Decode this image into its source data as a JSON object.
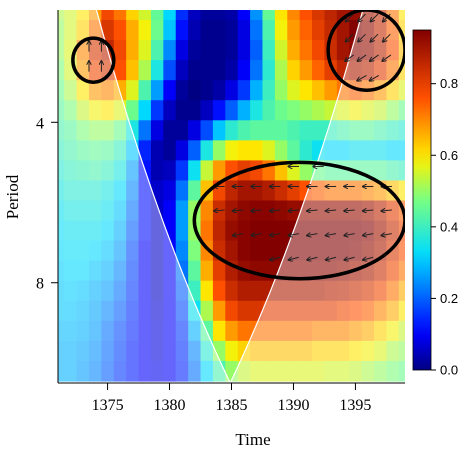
{
  "chart_data": {
    "type": "heatmap",
    "title": "",
    "xlabel": "Time",
    "ylabel": "Period",
    "x_range": [
      1371,
      1399
    ],
    "y_range": [
      1.2,
      10.5
    ],
    "x_ticks": [
      1375,
      1380,
      1385,
      1390,
      1395
    ],
    "y_ticks": [
      4,
      8
    ],
    "colorbar": {
      "range": [
        0,
        0.95
      ],
      "ticks": [
        0.0,
        0.2,
        0.4,
        0.6,
        0.8
      ],
      "tick_labels": [
        "0.0",
        "0.2",
        "0.4",
        "0.6",
        "0.8"
      ]
    },
    "power_grid": {
      "x_start": 1371,
      "x_end": 1399,
      "x_step": 1,
      "y_start": 1.2,
      "y_end": 10.5,
      "y_step": 0.5,
      "shape": "row-major, rows = period from short to long, columns = time",
      "values": [
        [
          0.52,
          0.55,
          0.6,
          0.68,
          0.78,
          0.72,
          0.62,
          0.55,
          0.45,
          0.32,
          0.15,
          0.05,
          0.02,
          0.02,
          0.03,
          0.1,
          0.25,
          0.45,
          0.6,
          0.7,
          0.76,
          0.82,
          0.86,
          0.9,
          0.92,
          0.9,
          0.84,
          0.72,
          0.6
        ],
        [
          0.5,
          0.55,
          0.62,
          0.72,
          0.82,
          0.76,
          0.66,
          0.58,
          0.46,
          0.3,
          0.12,
          0.04,
          0.01,
          0.01,
          0.02,
          0.08,
          0.22,
          0.42,
          0.58,
          0.68,
          0.74,
          0.8,
          0.85,
          0.9,
          0.95,
          0.92,
          0.85,
          0.74,
          0.62
        ],
        [
          0.5,
          0.56,
          0.7,
          0.82,
          0.86,
          0.78,
          0.66,
          0.56,
          0.42,
          0.24,
          0.08,
          0.02,
          0.01,
          0.01,
          0.02,
          0.08,
          0.2,
          0.4,
          0.55,
          0.66,
          0.72,
          0.78,
          0.84,
          0.9,
          0.93,
          0.92,
          0.86,
          0.76,
          0.64
        ],
        [
          0.48,
          0.55,
          0.68,
          0.78,
          0.82,
          0.76,
          0.64,
          0.52,
          0.36,
          0.18,
          0.05,
          0.01,
          0.01,
          0.01,
          0.03,
          0.1,
          0.22,
          0.38,
          0.52,
          0.62,
          0.68,
          0.74,
          0.8,
          0.86,
          0.88,
          0.86,
          0.8,
          0.72,
          0.62
        ],
        [
          0.46,
          0.52,
          0.6,
          0.68,
          0.7,
          0.66,
          0.56,
          0.42,
          0.26,
          0.1,
          0.02,
          0.0,
          0.01,
          0.03,
          0.08,
          0.16,
          0.28,
          0.4,
          0.5,
          0.56,
          0.6,
          0.64,
          0.68,
          0.72,
          0.74,
          0.72,
          0.68,
          0.62,
          0.56
        ],
        [
          0.44,
          0.48,
          0.54,
          0.58,
          0.6,
          0.56,
          0.46,
          0.32,
          0.16,
          0.05,
          0.01,
          0.01,
          0.05,
          0.12,
          0.2,
          0.28,
          0.36,
          0.42,
          0.46,
          0.48,
          0.5,
          0.52,
          0.54,
          0.56,
          0.58,
          0.56,
          0.54,
          0.5,
          0.46
        ],
        [
          0.42,
          0.44,
          0.48,
          0.5,
          0.5,
          0.46,
          0.36,
          0.22,
          0.08,
          0.02,
          0.02,
          0.08,
          0.18,
          0.3,
          0.38,
          0.42,
          0.44,
          0.44,
          0.44,
          0.42,
          0.4,
          0.4,
          0.4,
          0.42,
          0.44,
          0.44,
          0.42,
          0.4,
          0.38
        ],
        [
          0.4,
          0.42,
          0.44,
          0.45,
          0.44,
          0.4,
          0.3,
          0.14,
          0.04,
          0.02,
          0.08,
          0.2,
          0.36,
          0.5,
          0.58,
          0.6,
          0.6,
          0.56,
          0.5,
          0.44,
          0.38,
          0.34,
          0.32,
          0.32,
          0.34,
          0.34,
          0.34,
          0.32,
          0.32
        ],
        [
          0.38,
          0.4,
          0.41,
          0.42,
          0.4,
          0.36,
          0.26,
          0.12,
          0.04,
          0.05,
          0.16,
          0.34,
          0.54,
          0.68,
          0.76,
          0.8,
          0.78,
          0.72,
          0.64,
          0.56,
          0.5,
          0.46,
          0.44,
          0.44,
          0.44,
          0.44,
          0.44,
          0.42,
          0.4
        ],
        [
          0.36,
          0.38,
          0.38,
          0.38,
          0.36,
          0.32,
          0.24,
          0.12,
          0.06,
          0.08,
          0.22,
          0.44,
          0.64,
          0.78,
          0.86,
          0.9,
          0.9,
          0.88,
          0.84,
          0.8,
          0.76,
          0.74,
          0.72,
          0.72,
          0.72,
          0.7,
          0.68,
          0.64,
          0.6
        ],
        [
          0.34,
          0.36,
          0.36,
          0.36,
          0.34,
          0.3,
          0.22,
          0.12,
          0.06,
          0.1,
          0.26,
          0.5,
          0.7,
          0.84,
          0.9,
          0.93,
          0.94,
          0.94,
          0.93,
          0.92,
          0.92,
          0.92,
          0.92,
          0.92,
          0.92,
          0.9,
          0.86,
          0.8,
          0.74
        ],
        [
          0.33,
          0.34,
          0.34,
          0.34,
          0.32,
          0.28,
          0.2,
          0.12,
          0.06,
          0.1,
          0.26,
          0.5,
          0.72,
          0.86,
          0.92,
          0.94,
          0.95,
          0.95,
          0.95,
          0.95,
          0.95,
          0.95,
          0.95,
          0.95,
          0.95,
          0.94,
          0.9,
          0.84,
          0.78
        ],
        [
          0.32,
          0.33,
          0.33,
          0.32,
          0.3,
          0.26,
          0.18,
          0.1,
          0.06,
          0.1,
          0.24,
          0.48,
          0.7,
          0.84,
          0.9,
          0.94,
          0.95,
          0.95,
          0.95,
          0.95,
          0.95,
          0.95,
          0.95,
          0.95,
          0.94,
          0.92,
          0.88,
          0.82,
          0.76
        ],
        [
          0.31,
          0.32,
          0.32,
          0.3,
          0.28,
          0.24,
          0.17,
          0.1,
          0.06,
          0.1,
          0.22,
          0.44,
          0.66,
          0.8,
          0.88,
          0.92,
          0.93,
          0.93,
          0.93,
          0.93,
          0.93,
          0.93,
          0.93,
          0.92,
          0.9,
          0.88,
          0.84,
          0.78,
          0.72
        ],
        [
          0.3,
          0.31,
          0.3,
          0.28,
          0.26,
          0.22,
          0.16,
          0.1,
          0.06,
          0.1,
          0.2,
          0.4,
          0.6,
          0.76,
          0.84,
          0.88,
          0.88,
          0.88,
          0.88,
          0.88,
          0.88,
          0.88,
          0.87,
          0.86,
          0.84,
          0.82,
          0.78,
          0.72,
          0.66
        ],
        [
          0.3,
          0.3,
          0.29,
          0.27,
          0.24,
          0.2,
          0.15,
          0.1,
          0.07,
          0.1,
          0.18,
          0.34,
          0.52,
          0.68,
          0.78,
          0.82,
          0.82,
          0.8,
          0.8,
          0.8,
          0.8,
          0.8,
          0.8,
          0.78,
          0.76,
          0.74,
          0.7,
          0.66,
          0.6
        ],
        [
          0.29,
          0.29,
          0.28,
          0.26,
          0.22,
          0.18,
          0.14,
          0.1,
          0.08,
          0.1,
          0.16,
          0.28,
          0.44,
          0.6,
          0.68,
          0.72,
          0.72,
          0.72,
          0.72,
          0.72,
          0.72,
          0.7,
          0.7,
          0.7,
          0.68,
          0.66,
          0.62,
          0.58,
          0.54
        ],
        [
          0.28,
          0.28,
          0.27,
          0.25,
          0.21,
          0.17,
          0.13,
          0.1,
          0.08,
          0.1,
          0.15,
          0.24,
          0.38,
          0.5,
          0.58,
          0.62,
          0.64,
          0.64,
          0.64,
          0.64,
          0.64,
          0.62,
          0.62,
          0.62,
          0.6,
          0.58,
          0.56,
          0.52,
          0.5
        ],
        [
          0.28,
          0.28,
          0.26,
          0.24,
          0.2,
          0.16,
          0.13,
          0.1,
          0.09,
          0.1,
          0.14,
          0.22,
          0.32,
          0.42,
          0.5,
          0.54,
          0.56,
          0.56,
          0.56,
          0.56,
          0.56,
          0.56,
          0.55,
          0.55,
          0.54,
          0.52,
          0.5,
          0.48,
          0.46
        ]
      ]
    },
    "significance_regions": [
      {
        "name": "region-a",
        "time": [
          1372.2,
          1375.5
        ],
        "period": [
          1.9,
          3.0
        ]
      },
      {
        "name": "region-b",
        "time": [
          1392.8,
          1399
        ],
        "period": [
          1.2,
          3.2
        ]
      },
      {
        "name": "region-c",
        "time": [
          1382,
          1399
        ],
        "period": [
          5.0,
          7.9
        ]
      }
    ],
    "cone_of_influence": {
      "apex_time": 1384.9,
      "apex_period": 10.5,
      "left_edge_top_time": 1374.1,
      "right_edge_top_time": 1395.6
    },
    "phase_arrows": [
      {
        "t": 1373.5,
        "p": 2.1,
        "angle": 90
      },
      {
        "t": 1374.5,
        "p": 2.1,
        "angle": 90
      },
      {
        "t": 1373.5,
        "p": 2.6,
        "angle": 90
      },
      {
        "t": 1374.5,
        "p": 2.6,
        "angle": 90
      },
      {
        "t": 1394.5,
        "p": 1.4,
        "angle": 225
      },
      {
        "t": 1395.5,
        "p": 1.4,
        "angle": 225
      },
      {
        "t": 1396.5,
        "p": 1.4,
        "angle": 225
      },
      {
        "t": 1397.5,
        "p": 1.4,
        "angle": 225
      },
      {
        "t": 1394.5,
        "p": 1.9,
        "angle": 225
      },
      {
        "t": 1395.5,
        "p": 1.9,
        "angle": 225
      },
      {
        "t": 1396.5,
        "p": 1.9,
        "angle": 225
      },
      {
        "t": 1397.5,
        "p": 1.9,
        "angle": 225
      },
      {
        "t": 1394.5,
        "p": 2.4,
        "angle": 215
      },
      {
        "t": 1395.5,
        "p": 2.4,
        "angle": 215
      },
      {
        "t": 1396.5,
        "p": 2.4,
        "angle": 215
      },
      {
        "t": 1397.5,
        "p": 2.4,
        "angle": 215
      },
      {
        "t": 1395.5,
        "p": 2.9,
        "angle": 210
      },
      {
        "t": 1396.5,
        "p": 2.9,
        "angle": 210
      },
      {
        "t": 1384,
        "p": 5.6,
        "angle": 180
      },
      {
        "t": 1385.5,
        "p": 5.6,
        "angle": 180
      },
      {
        "t": 1387,
        "p": 5.6,
        "angle": 180
      },
      {
        "t": 1388.5,
        "p": 5.6,
        "angle": 180
      },
      {
        "t": 1390,
        "p": 5.6,
        "angle": 180
      },
      {
        "t": 1391.5,
        "p": 5.6,
        "angle": 180
      },
      {
        "t": 1393,
        "p": 5.6,
        "angle": 180
      },
      {
        "t": 1394.5,
        "p": 5.6,
        "angle": 180
      },
      {
        "t": 1396,
        "p": 5.6,
        "angle": 180
      },
      {
        "t": 1397.5,
        "p": 5.6,
        "angle": 180
      },
      {
        "t": 1384,
        "p": 6.2,
        "angle": 185
      },
      {
        "t": 1385.5,
        "p": 6.2,
        "angle": 185
      },
      {
        "t": 1387,
        "p": 6.2,
        "angle": 185
      },
      {
        "t": 1388.5,
        "p": 6.2,
        "angle": 185
      },
      {
        "t": 1390,
        "p": 6.2,
        "angle": 185
      },
      {
        "t": 1391.5,
        "p": 6.2,
        "angle": 185
      },
      {
        "t": 1393,
        "p": 6.2,
        "angle": 185
      },
      {
        "t": 1394.5,
        "p": 6.2,
        "angle": 185
      },
      {
        "t": 1396,
        "p": 6.2,
        "angle": 185
      },
      {
        "t": 1397.5,
        "p": 6.2,
        "angle": 185
      },
      {
        "t": 1385.5,
        "p": 6.8,
        "angle": 190
      },
      {
        "t": 1387,
        "p": 6.8,
        "angle": 190
      },
      {
        "t": 1388.5,
        "p": 6.8,
        "angle": 190
      },
      {
        "t": 1390,
        "p": 6.8,
        "angle": 190
      },
      {
        "t": 1391.5,
        "p": 6.8,
        "angle": 190
      },
      {
        "t": 1393,
        "p": 6.8,
        "angle": 190
      },
      {
        "t": 1394.5,
        "p": 6.8,
        "angle": 190
      },
      {
        "t": 1396,
        "p": 6.8,
        "angle": 190
      },
      {
        "t": 1397.5,
        "p": 6.8,
        "angle": 190
      },
      {
        "t": 1388.5,
        "p": 7.4,
        "angle": 195
      },
      {
        "t": 1390,
        "p": 7.4,
        "angle": 195
      },
      {
        "t": 1391.5,
        "p": 7.4,
        "angle": 195
      },
      {
        "t": 1393,
        "p": 7.4,
        "angle": 195
      },
      {
        "t": 1394.5,
        "p": 7.4,
        "angle": 195
      },
      {
        "t": 1396,
        "p": 7.4,
        "angle": 195
      },
      {
        "t": 1390,
        "p": 5.1,
        "angle": 180
      },
      {
        "t": 1392,
        "p": 5.1,
        "angle": 180
      }
    ]
  }
}
